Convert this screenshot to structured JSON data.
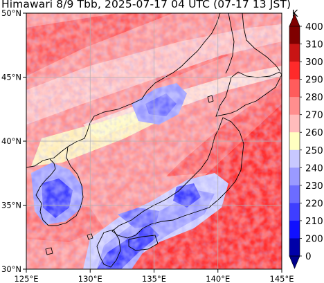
{
  "title": "Himawari 8/9 Tbb, 2025-07-17 04 UTC (07-17 13 JST)",
  "map": {
    "lon_range": [
      125,
      145
    ],
    "lat_range": [
      30,
      50
    ],
    "lon_ticks": [
      "125°E",
      "130°E",
      "135°E",
      "140°E",
      "145°E"
    ],
    "lat_ticks": [
      "50°N",
      "45°N",
      "40°N",
      "35°N",
      "30°N"
    ],
    "grid": true
  },
  "colorbar": {
    "unit": "K",
    "levels": [
      "400",
      "310",
      "300",
      "290",
      "280",
      "270",
      "260",
      "250",
      "240",
      "230",
      "220",
      "210",
      "200",
      "0"
    ],
    "colors": [
      "#7f0000",
      "#c81414",
      "#ff2a2a",
      "#ff5c5c",
      "#ff8e8e",
      "#ffbcbc",
      "#ffffc0",
      "#c8c8ff",
      "#9a9aff",
      "#6c6cff",
      "#3e3eff",
      "#1010ff",
      "#0000a8"
    ],
    "extend_top_color": "#7f0000",
    "extend_bottom_color": "#00008c"
  }
}
